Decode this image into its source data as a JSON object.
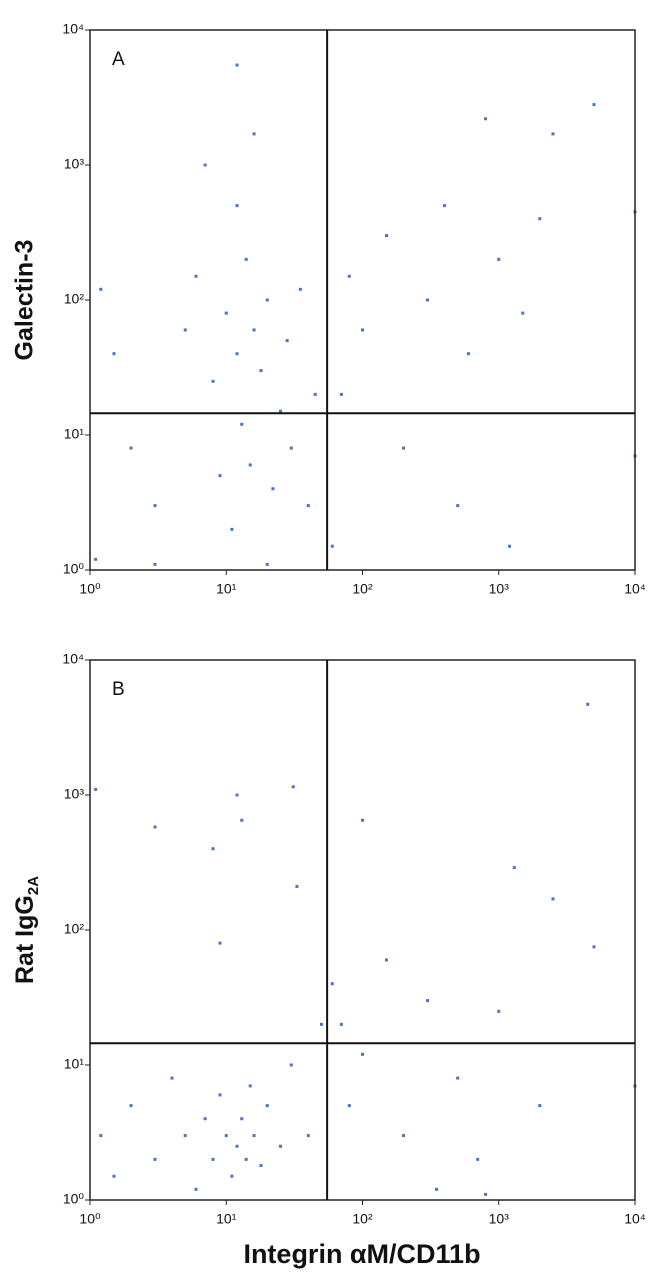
{
  "chart_data": [
    {
      "type": "scatter",
      "panel_label": "A",
      "ylabel": "Galectin-3",
      "log_x": true,
      "log_y": true,
      "xlim": [
        1,
        10000
      ],
      "ylim": [
        1,
        10000
      ],
      "xticks": [
        {
          "value": 1,
          "label": "10⁰"
        },
        {
          "value": 10,
          "label": "10¹"
        },
        {
          "value": 100,
          "label": "10²"
        },
        {
          "value": 1000,
          "label": "10³"
        },
        {
          "value": 10000,
          "label": "10⁴"
        }
      ],
      "yticks": [
        {
          "value": 1,
          "label": "10⁰"
        },
        {
          "value": 10,
          "label": "10¹"
        },
        {
          "value": 100,
          "label": "10²"
        },
        {
          "value": 1000,
          "label": "10³"
        },
        {
          "value": 10000,
          "label": "10⁴"
        }
      ],
      "gate_x": 55,
      "gate_y": 14.5,
      "color": "#4a72c8",
      "x": [
        1.2,
        1.5,
        2,
        3,
        5,
        6,
        8,
        9,
        10,
        11,
        12,
        13,
        14,
        15,
        16,
        18,
        20,
        22,
        25,
        28,
        30,
        35,
        40,
        45,
        12,
        16,
        12,
        7,
        70,
        80,
        100,
        150,
        200,
        300,
        400,
        600,
        800,
        1000,
        1500,
        2000,
        2500,
        5000,
        10000,
        1200,
        500,
        10000,
        1.1,
        3,
        20,
        60
      ],
      "values": [
        120,
        40,
        8,
        3,
        60,
        150,
        25,
        5,
        80,
        2,
        40,
        12,
        200,
        6,
        60,
        30,
        100,
        4,
        15,
        50,
        8,
        120,
        3,
        20,
        5500,
        1700,
        500,
        1000,
        20,
        150,
        60,
        300,
        8,
        100,
        500,
        40,
        2200,
        200,
        80,
        400,
        1700,
        2800,
        450,
        1.5,
        3,
        7,
        1.2,
        1.1,
        1.1,
        1.5
      ]
    },
    {
      "type": "scatter",
      "panel_label": "B",
      "ylabel": "Rat IgG",
      "ylabel_sub": "2A",
      "xlabel": "Integrin αM/CD11b",
      "log_x": true,
      "log_y": true,
      "xlim": [
        1,
        10000
      ],
      "ylim": [
        1,
        10000
      ],
      "xticks": [
        {
          "value": 1,
          "label": "10⁰"
        },
        {
          "value": 10,
          "label": "10¹"
        },
        {
          "value": 100,
          "label": "10²"
        },
        {
          "value": 1000,
          "label": "10³"
        },
        {
          "value": 10000,
          "label": "10⁴"
        }
      ],
      "yticks": [
        {
          "value": 1,
          "label": "10⁰"
        },
        {
          "value": 10,
          "label": "10¹"
        },
        {
          "value": 100,
          "label": "10²"
        },
        {
          "value": 1000,
          "label": "10³"
        },
        {
          "value": 10000,
          "label": "10⁴"
        }
      ],
      "gate_x": 55,
      "gate_y": 14.5,
      "color": "#4a72c8",
      "x": [
        1.2,
        1.5,
        2,
        3,
        4,
        5,
        6,
        7,
        8,
        9,
        10,
        11,
        12,
        13,
        14,
        15,
        16,
        18,
        20,
        25,
        30,
        40,
        50,
        12,
        13,
        31,
        3,
        8,
        33,
        9,
        60,
        70,
        80,
        100,
        150,
        200,
        300,
        500,
        700,
        1000,
        1300,
        2000,
        2500,
        5000,
        10000,
        100,
        1.1,
        800,
        350,
        4500
      ],
      "values": [
        3,
        1.5,
        5,
        2,
        8,
        3,
        1.2,
        4,
        2,
        6,
        3,
        1.5,
        2.5,
        4,
        2,
        7,
        3,
        1.8,
        5,
        2.5,
        10,
        3,
        20,
        1000,
        650,
        1150,
        580,
        400,
        210,
        80,
        40,
        20,
        5,
        12,
        60,
        3,
        30,
        8,
        2,
        25,
        290,
        5,
        170,
        75,
        7,
        650,
        1100,
        1.1,
        1.2,
        4700
      ]
    }
  ]
}
